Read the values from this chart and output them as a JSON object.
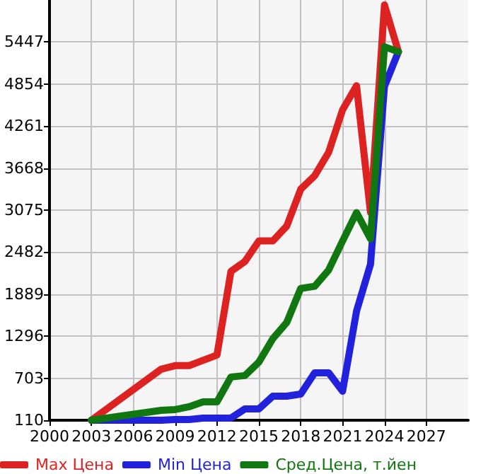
{
  "chart_data": {
    "type": "line",
    "xlim": [
      2000,
      2030
    ],
    "xticks": [
      2000,
      2003,
      2006,
      2009,
      2012,
      2015,
      2018,
      2021,
      2024,
      2027
    ],
    "ylim": [
      110,
      6040
    ],
    "yticks": [
      110,
      703,
      1296,
      1889,
      2482,
      3075,
      3668,
      4261,
      4854,
      5447
    ],
    "grid": true,
    "legend": "bottom",
    "marker": "none",
    "line_style": "solid",
    "series": [
      {
        "name": "Max Цена",
        "color": "#dd2222",
        "x": [
          2003,
          2008,
          2009,
          2010,
          2012,
          2013,
          2014,
          2015,
          2016,
          2017,
          2018,
          2019,
          2020,
          2021,
          2022,
          2023,
          2024,
          2025
        ],
        "values": [
          110,
          830,
          880,
          880,
          1030,
          2210,
          2350,
          2640,
          2640,
          2850,
          3370,
          3560,
          3890,
          4490,
          4830,
          3040,
          5970,
          5310
        ]
      },
      {
        "name": "Min Цена",
        "color": "#2222dd",
        "x": [
          2003,
          2008,
          2009,
          2010,
          2011,
          2012,
          2013,
          2014,
          2015,
          2016,
          2017,
          2018,
          2019,
          2020,
          2021,
          2022,
          2023,
          2024,
          2025
        ],
        "values": [
          110,
          110,
          120,
          120,
          140,
          140,
          140,
          270,
          270,
          450,
          450,
          480,
          780,
          780,
          520,
          1650,
          2310,
          4820,
          5310
        ]
      },
      {
        "name": "Сред.Цена, т.йен",
        "color": "#117711",
        "x": [
          2003,
          2008,
          2009,
          2010,
          2011,
          2012,
          2013,
          2014,
          2015,
          2016,
          2017,
          2018,
          2019,
          2020,
          2021,
          2022,
          2023,
          2024,
          2025
        ],
        "values": [
          110,
          250,
          260,
          300,
          370,
          370,
          720,
          740,
          930,
          1260,
          1490,
          1970,
          2000,
          2230,
          2640,
          3040,
          2670,
          5380,
          5310
        ]
      }
    ]
  }
}
